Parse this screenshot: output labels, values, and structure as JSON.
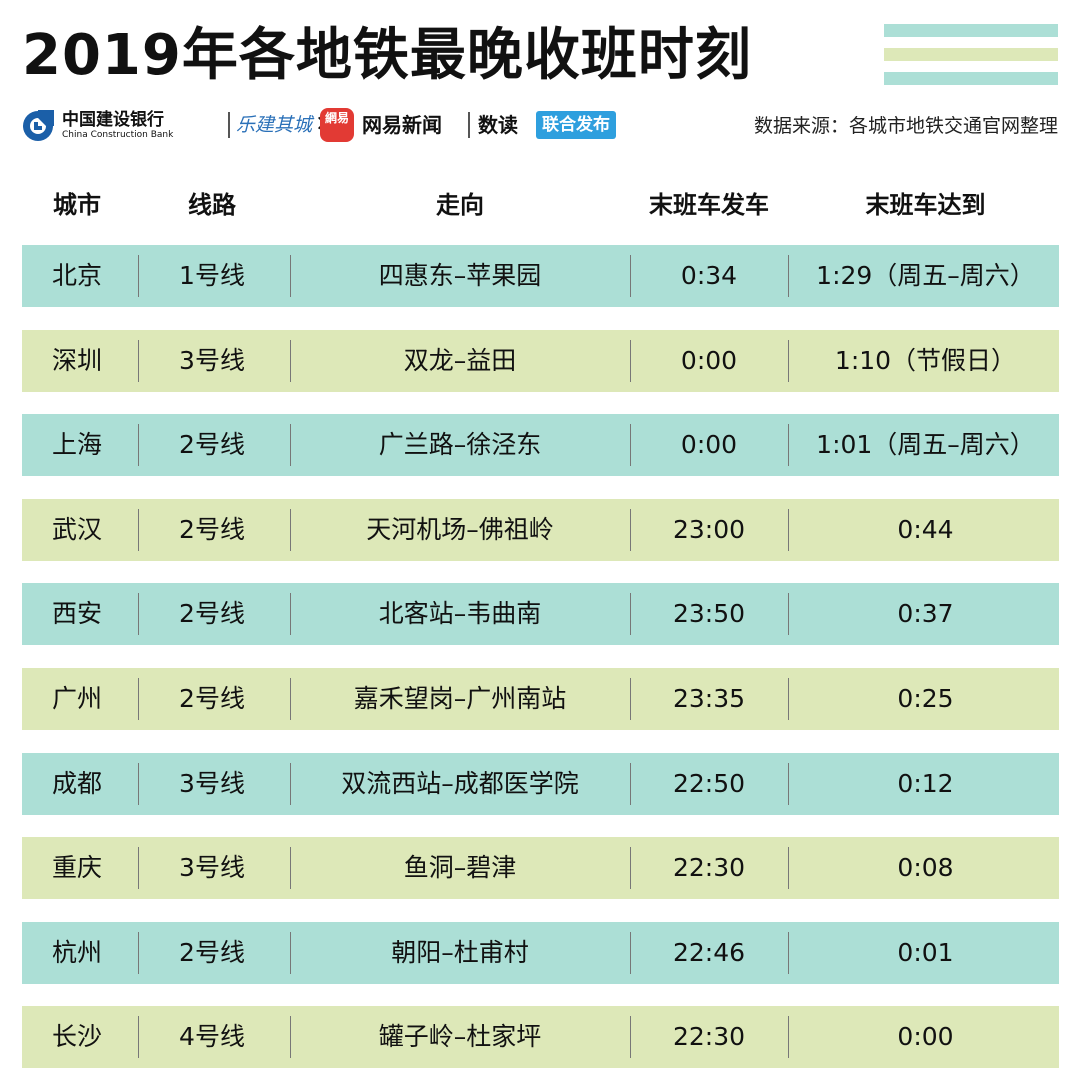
{
  "title": "2019年各地铁最晚收班时刻",
  "brands": {
    "ccb_cn": "中国建设银行",
    "ccb_en": "China Construction Bank",
    "script_logo": "乐建其城",
    "times": "×",
    "netease_logo": "網易",
    "netease_news": "网易新闻",
    "shudu": "数读",
    "joint": "联合发布"
  },
  "source": "数据来源：各城市地铁交通官网整理",
  "colors": {
    "teal": "#acdfd6",
    "green": "#dde8b8",
    "ccb_blue": "#1b5fa8",
    "netease_red": "#e23a34",
    "badge_blue": "#2e9fde"
  },
  "chart_data": {
    "type": "table",
    "title": "2019年各地铁最晚收班时刻",
    "columns": [
      "城市",
      "线路",
      "走向",
      "末班车发车",
      "末班车达到"
    ],
    "rows": [
      [
        "北京",
        "1号线",
        "四惠东–苹果园",
        "0:34",
        "1:29（周五–周六）"
      ],
      [
        "深圳",
        "3号线",
        "双龙–益田",
        "0:00",
        "1:10（节假日）"
      ],
      [
        "上海",
        "2号线",
        "广兰路–徐泾东",
        "0:00",
        "1:01（周五–周六）"
      ],
      [
        "武汉",
        "2号线",
        "天河机场–佛祖岭",
        "23:00",
        "0:44"
      ],
      [
        "西安",
        "2号线",
        "北客站–韦曲南",
        "23:50",
        "0:37"
      ],
      [
        "广州",
        "2号线",
        "嘉禾望岗–广州南站",
        "23:35",
        "0:25"
      ],
      [
        "成都",
        "3号线",
        "双流西站–成都医学院",
        "22:50",
        "0:12"
      ],
      [
        "重庆",
        "3号线",
        "鱼洞–碧津",
        "22:30",
        "0:08"
      ],
      [
        "杭州",
        "2号线",
        "朝阳–杜甫村",
        "22:46",
        "0:01"
      ],
      [
        "长沙",
        "4号线",
        "罐子岭–杜家坪",
        "22:30",
        "0:00"
      ]
    ]
  }
}
